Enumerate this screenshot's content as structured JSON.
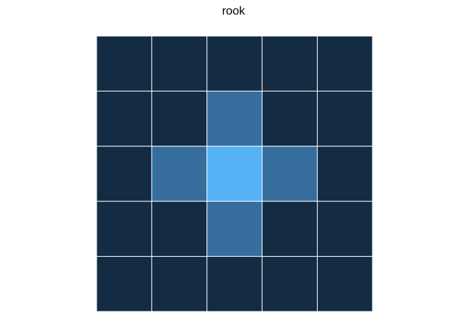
{
  "chart_data": {
    "type": "heatmap",
    "title": "rook",
    "xlabel": "",
    "ylabel": "",
    "grid": true,
    "legend": "none",
    "nrows": 5,
    "ncols": 5,
    "values": [
      [
        0,
        0,
        0,
        0,
        0
      ],
      [
        0,
        0,
        1,
        0,
        0
      ],
      [
        0,
        1,
        2,
        1,
        0
      ],
      [
        0,
        0,
        1,
        0,
        0
      ],
      [
        0,
        0,
        0,
        0,
        0
      ]
    ],
    "colors": {
      "low": "#132b43",
      "high": "#56b1f7",
      "grid_line": "#ffffff"
    }
  }
}
